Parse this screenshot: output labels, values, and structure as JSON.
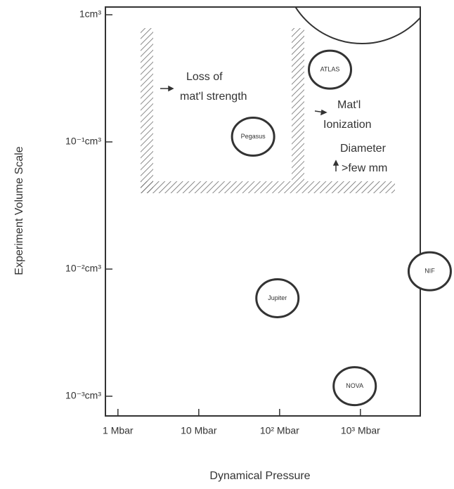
{
  "chart_data": {
    "type": "scatter",
    "xlabel": "Dynamical Pressure",
    "ylabel": "Experiment Volume Scale",
    "x": [
      47,
      420,
      94,
      850,
      7200
    ],
    "values": [
      0.11,
      0.37,
      0.0059,
      0.0012,
      0.0096
    ],
    "labels": [
      "Pegasus",
      "ATLAS",
      "Jupiter",
      "NOVA",
      "NIF"
    ],
    "color": "#333333",
    "xscale": "log",
    "yscale": "log",
    "xlim": [
      0.7,
      5500
    ],
    "ylim": [
      0.0007,
      1.15
    ],
    "xticks": [
      {
        "value": 1,
        "label": "1 Mbar"
      },
      {
        "value": 10,
        "label": "10 Mbar"
      },
      {
        "value": 100,
        "label": "10² Mbar"
      },
      {
        "value": 1000,
        "label": "10³ Mbar"
      }
    ],
    "yticks": [
      {
        "value": 1,
        "label": "1cm³"
      },
      {
        "value": 0.1,
        "label": "10⁻¹cm³"
      },
      {
        "value": 0.01,
        "label": "10⁻²cm³"
      },
      {
        "value": 0.001,
        "label": "10⁻³cm³"
      }
    ],
    "annotations": [
      "Loss of",
      "mat'l strength",
      "Mat'l",
      "Ionization",
      "Diameter",
      ">few mm"
    ]
  }
}
